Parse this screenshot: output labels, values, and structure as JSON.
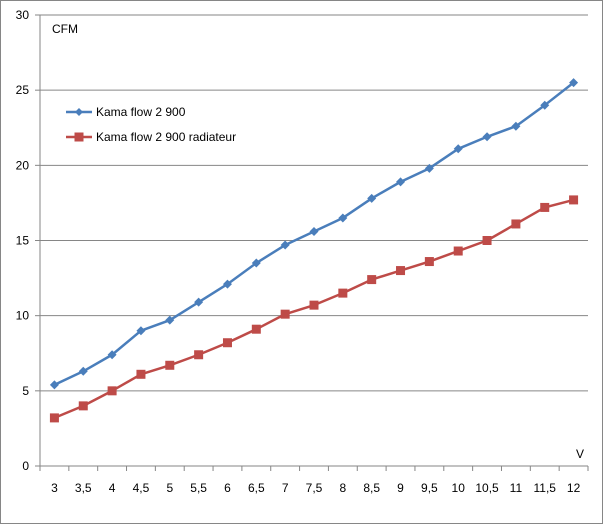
{
  "chart_data": {
    "type": "line",
    "title": "",
    "xlabel": "V",
    "ylabel": "CFM",
    "x": [
      "3",
      "3,5",
      "4",
      "4,5",
      "5",
      "5,5",
      "6",
      "6,5",
      "7",
      "7,5",
      "8",
      "8,5",
      "9",
      "9,5",
      "10",
      "10,5",
      "11",
      "11,5",
      "12"
    ],
    "ylim": [
      0,
      30
    ],
    "yticks": [
      "0",
      "5",
      "10",
      "15",
      "20",
      "25",
      "30"
    ],
    "grid": "horizontal",
    "legend_position": "top-left",
    "series": [
      {
        "name": "Kama flow 2 900",
        "color": "#4a7ebb",
        "marker": "diamond",
        "values": [
          5.4,
          6.3,
          7.4,
          9.0,
          9.7,
          10.9,
          12.1,
          13.5,
          14.7,
          15.6,
          16.5,
          17.8,
          18.9,
          19.8,
          21.1,
          21.9,
          22.6,
          24.0,
          25.5
        ]
      },
      {
        "name": "Kama flow 2 900 radiateur",
        "color": "#be4b48",
        "marker": "square",
        "values": [
          3.2,
          4.0,
          5.0,
          6.1,
          6.7,
          7.4,
          8.2,
          9.1,
          10.1,
          10.7,
          11.5,
          12.4,
          13.0,
          13.6,
          14.3,
          15.0,
          16.1,
          17.2,
          17.7
        ]
      }
    ]
  }
}
